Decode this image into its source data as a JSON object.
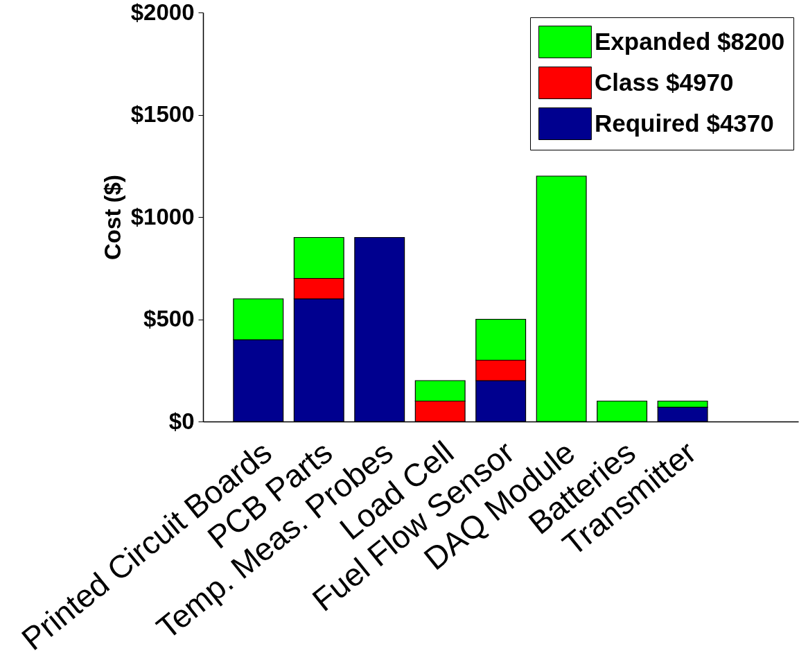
{
  "chart_data": {
    "type": "bar",
    "stacked": true,
    "ylabel": "Cost ($)",
    "categories": [
      "Printed Circuit Boards",
      "PCB Parts",
      "Temp. Meas. Probes",
      "Load Cell",
      "Fuel Flow Sensor",
      "DAQ Module",
      "Batteries",
      "Transmitter"
    ],
    "series": [
      {
        "name": "Required $4370",
        "color": "#00008f",
        "values": [
          400,
          600,
          900,
          null,
          200,
          null,
          null,
          70
        ]
      },
      {
        "name": "Class $4970",
        "color": "#ff0000",
        "values": [
          null,
          100,
          null,
          100,
          100,
          null,
          null,
          null
        ]
      },
      {
        "name": "Expanded $8200",
        "color": "#00ff00",
        "values": [
          200,
          200,
          null,
          100,
          200,
          1200,
          100,
          30
        ]
      }
    ],
    "ylim": [
      0,
      2000
    ],
    "yticks": [
      {
        "value": 0,
        "label": "$0"
      },
      {
        "value": 500,
        "label": "$500"
      },
      {
        "value": 1000,
        "label": "$1000"
      },
      {
        "value": 1500,
        "label": "$1500"
      },
      {
        "value": 2000,
        "label": "$2000"
      }
    ],
    "legend": "top right"
  }
}
